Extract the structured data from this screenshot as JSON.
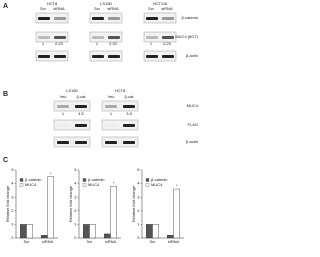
{
  "figure": {
    "panel_a": {
      "label": "A",
      "cell_lines": [
        "HCT8",
        "LS180",
        "HCT116"
      ],
      "lanes": [
        "Scr",
        "siRNA"
      ],
      "proteins": [
        "β-catenin",
        "MUC4 (8G7)",
        "β-actin"
      ],
      "ratios": [
        [
          "1",
          "0.20"
        ],
        [
          "1",
          "0.30"
        ],
        [
          "1",
          "0.25"
        ]
      ]
    },
    "panel_b": {
      "label": "B",
      "cell_lines": [
        "LS180",
        "HCT8"
      ],
      "lanes": [
        "Vec",
        "β-cat"
      ],
      "proteins": [
        "MUC4",
        "FLAG",
        "β-actin"
      ],
      "ratios": [
        [
          "1",
          "4.5"
        ],
        [
          "1",
          "3.8"
        ]
      ]
    },
    "panel_c": {
      "label": "C"
    }
  },
  "chart_data": [
    {
      "type": "bar",
      "ylabel": "Relative fold change",
      "categories": [
        "Scr",
        "siRNA"
      ],
      "series": [
        {
          "name": "β-catenin",
          "color": "#555555",
          "values": [
            1,
            0.2
          ]
        },
        {
          "name": "MUC4",
          "color": "#ffffff",
          "values": [
            1,
            4.5
          ]
        }
      ],
      "ylim": [
        0,
        5
      ],
      "yticks": [
        0,
        1,
        2,
        3,
        4,
        5
      ],
      "annotation": "*"
    },
    {
      "type": "bar",
      "ylabel": "Relative fold change",
      "categories": [
        "Scr",
        "siRNA"
      ],
      "series": [
        {
          "name": "β-catenin",
          "color": "#555555",
          "values": [
            1,
            0.3
          ]
        },
        {
          "name": "MUC4",
          "color": "#ffffff",
          "values": [
            1,
            3.8
          ]
        }
      ],
      "ylim": [
        0,
        5
      ],
      "yticks": [
        0,
        1,
        2,
        3,
        4,
        5
      ],
      "annotation": "*"
    },
    {
      "type": "bar",
      "ylabel": "Relative fold change",
      "categories": [
        "Scr",
        "siRNA"
      ],
      "series": [
        {
          "name": "β-catenin",
          "color": "#555555",
          "values": [
            1,
            0.2
          ]
        },
        {
          "name": "MUC4",
          "color": "#ffffff",
          "values": [
            1,
            3.6
          ]
        }
      ],
      "ylim": [
        0,
        5
      ],
      "yticks": [
        0,
        1,
        2,
        3,
        4,
        5
      ],
      "annotation": "*"
    }
  ]
}
